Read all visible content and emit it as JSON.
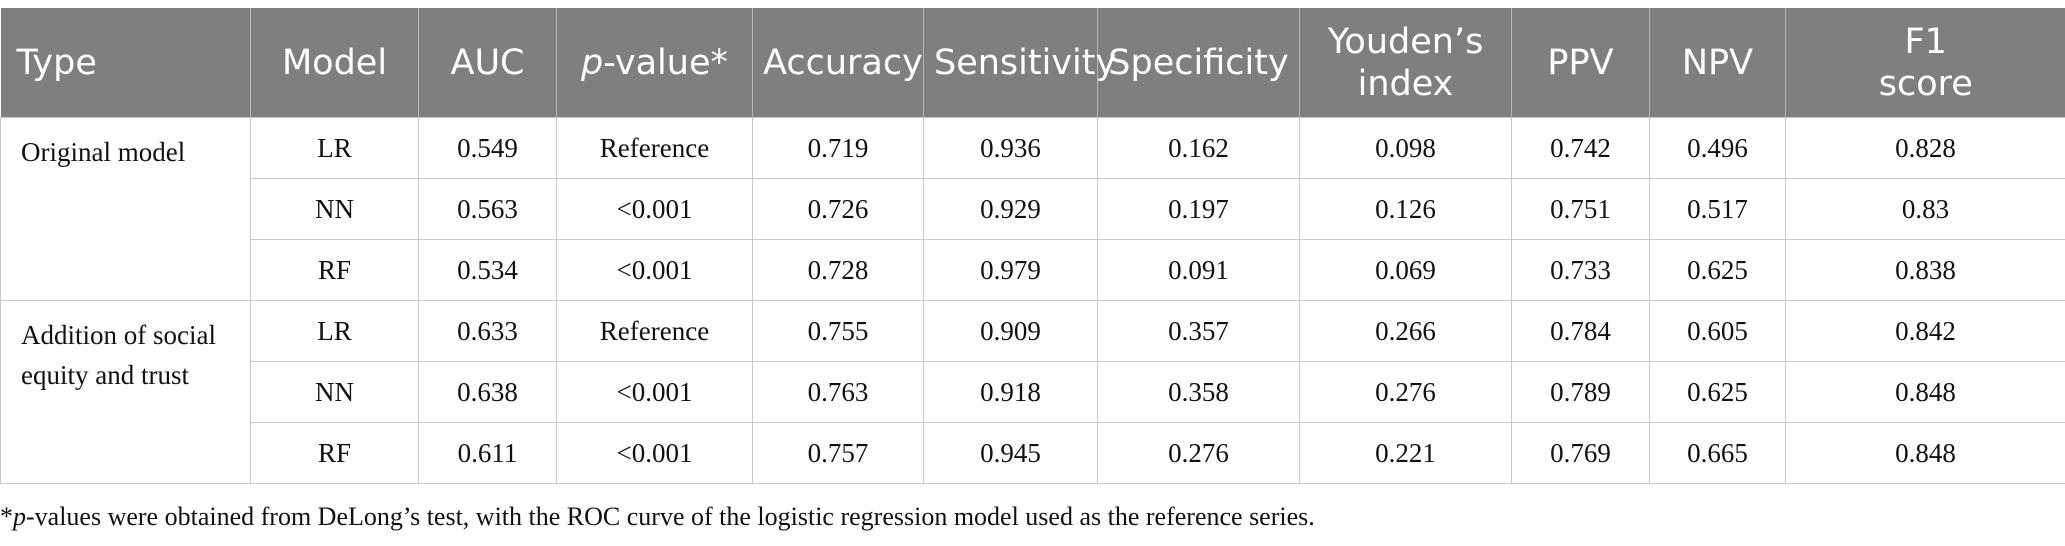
{
  "table": {
    "headers": {
      "type": "Type",
      "model": "Model",
      "auc": "AUC",
      "pvalue_p": "p",
      "pvalue_rest": "-value*",
      "accuracy": "Accuracy",
      "sensitivity": "Sensitivity",
      "specificity": "Specificity",
      "youden_line1": "Youden’s",
      "youden_line2": "index",
      "ppv": "PPV",
      "npv": "NPV",
      "f1_line1": "F1",
      "f1_line2": "score"
    },
    "groups": [
      {
        "type": "Original model",
        "rows": [
          {
            "model": "LR",
            "auc": "0.549",
            "p": "Reference",
            "accuracy": "0.719",
            "sensitivity": "0.936",
            "specificity": "0.162",
            "youden": "0.098",
            "ppv": "0.742",
            "npv": "0.496",
            "f1": "0.828"
          },
          {
            "model": "NN",
            "auc": "0.563",
            "p": "<0.001",
            "accuracy": "0.726",
            "sensitivity": "0.929",
            "specificity": "0.197",
            "youden": "0.126",
            "ppv": "0.751",
            "npv": "0.517",
            "f1": "0.83"
          },
          {
            "model": "RF",
            "auc": "0.534",
            "p": "<0.001",
            "accuracy": "0.728",
            "sensitivity": "0.979",
            "specificity": "0.091",
            "youden": "0.069",
            "ppv": "0.733",
            "npv": "0.625",
            "f1": "0.838"
          }
        ]
      },
      {
        "type_line1": "Addition of social",
        "type_line2": "equity and trust",
        "rows": [
          {
            "model": "LR",
            "auc": "0.633",
            "p": "Reference",
            "accuracy": "0.755",
            "sensitivity": "0.909",
            "specificity": "0.357",
            "youden": "0.266",
            "ppv": "0.784",
            "npv": "0.605",
            "f1": "0.842"
          },
          {
            "model": "NN",
            "auc": "0.638",
            "p": "<0.001",
            "accuracy": "0.763",
            "sensitivity": "0.918",
            "specificity": "0.358",
            "youden": "0.276",
            "ppv": "0.789",
            "npv": "0.625",
            "f1": "0.848"
          },
          {
            "model": "RF",
            "auc": "0.611",
            "p": "<0.001",
            "accuracy": "0.757",
            "sensitivity": "0.945",
            "specificity": "0.276",
            "youden": "0.221",
            "ppv": "0.769",
            "npv": "0.665",
            "f1": "0.848"
          }
        ]
      }
    ]
  },
  "footnote": {
    "star": "*",
    "p": "p",
    "text": "-values were obtained from DeLong’s test, with the ROC curve of the logistic regression model used as the reference series."
  },
  "colors": {
    "header_bg": "#7e7f7e",
    "header_text": "#ffffff",
    "grid": "#c8c8c8"
  }
}
